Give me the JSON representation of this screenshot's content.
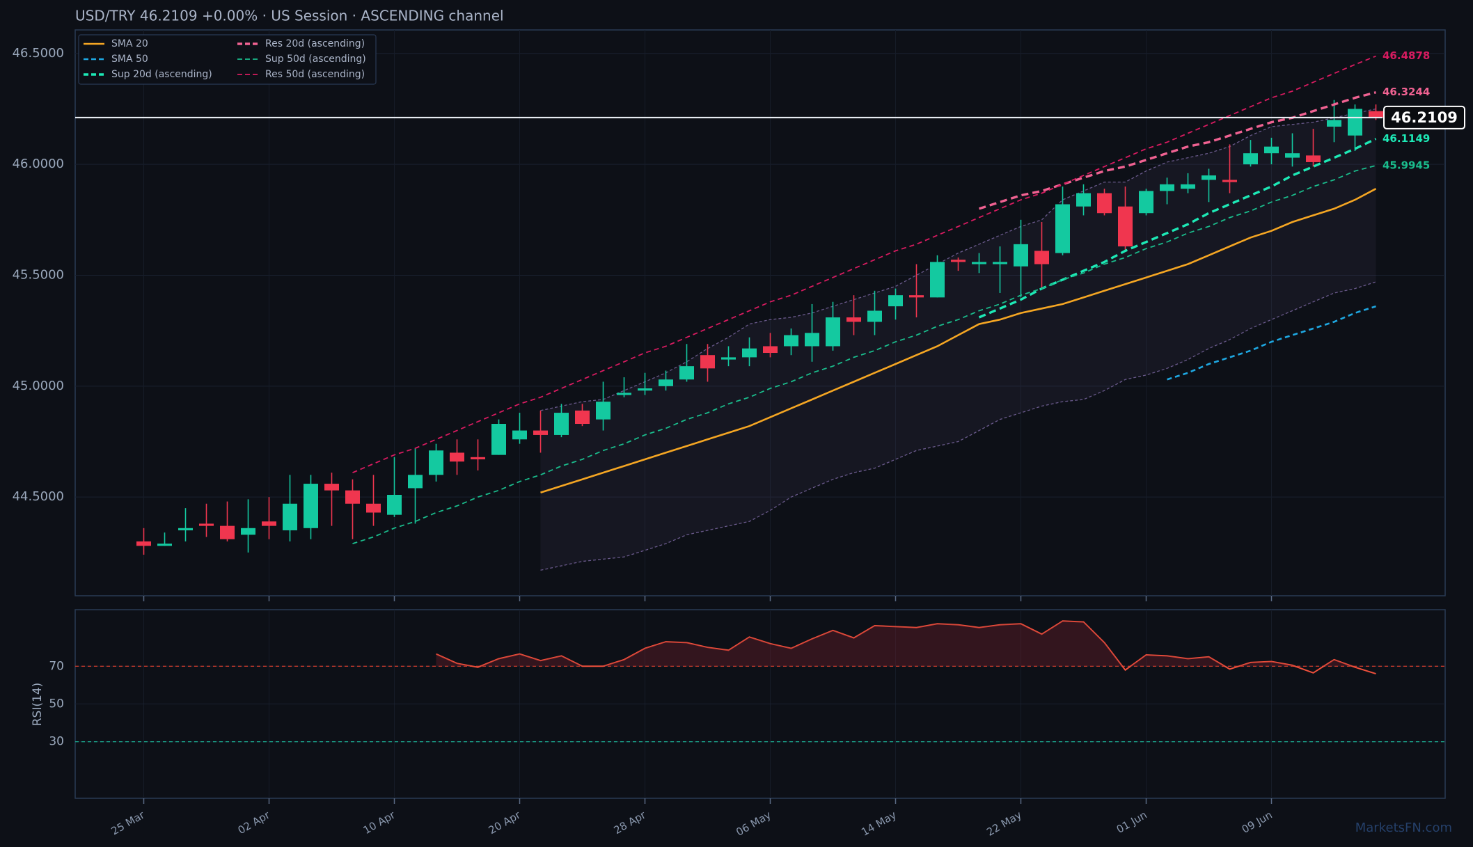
{
  "chart_data": [
    {
      "type": "candlestick",
      "title": "USD/TRY   46.2109   +0.00%  ·  US Session  ·  ASCENDING channel",
      "watermark": "MarketsFN.com",
      "categories": [
        "25 Mar",
        null,
        null,
        null,
        null,
        null,
        "02 Apr",
        null,
        null,
        null,
        null,
        null,
        "10 Apr",
        null,
        null,
        null,
        null,
        null,
        "20 Apr",
        null,
        null,
        null,
        null,
        null,
        "28 Apr",
        null,
        null,
        null,
        null,
        null,
        "06 May",
        null,
        null,
        null,
        null,
        null,
        "14 May",
        null,
        null,
        null,
        null,
        null,
        "22 May",
        null,
        null,
        null,
        null,
        null,
        "01 Jun",
        null,
        null,
        null,
        null,
        null,
        "09 Jun",
        null,
        null,
        null,
        null,
        null
      ],
      "open": [
        44.3,
        44.28,
        44.35,
        44.38,
        44.37,
        44.33,
        44.39,
        44.35,
        44.36,
        44.56,
        44.53,
        44.47,
        44.42,
        44.54,
        44.6,
        44.7,
        44.68,
        44.69,
        44.76,
        44.8,
        44.78,
        44.89,
        44.85,
        44.96,
        44.98,
        45.0,
        45.03,
        45.14,
        45.12,
        45.13,
        45.18,
        45.18,
        45.18,
        45.18,
        45.31,
        45.29,
        45.36,
        45.41,
        45.4,
        45.57,
        45.55,
        45.55,
        45.54,
        45.61,
        45.6,
        45.81,
        45.87,
        45.81,
        45.78,
        45.88,
        45.89,
        45.93,
        45.93,
        46.0,
        46.05,
        46.03,
        46.04,
        46.17,
        46.13,
        46.24
      ],
      "high": [
        44.36,
        44.34,
        44.45,
        44.47,
        44.48,
        44.49,
        44.5,
        44.6,
        44.6,
        44.61,
        44.58,
        44.6,
        44.68,
        44.72,
        44.74,
        44.76,
        44.76,
        44.85,
        44.88,
        44.89,
        44.92,
        44.92,
        45.02,
        45.04,
        45.06,
        45.07,
        45.19,
        45.19,
        45.18,
        45.22,
        45.24,
        45.26,
        45.37,
        45.38,
        45.41,
        45.43,
        45.44,
        45.55,
        45.59,
        45.58,
        45.6,
        45.63,
        45.75,
        45.74,
        45.9,
        45.91,
        45.89,
        45.9,
        45.89,
        45.94,
        45.96,
        45.98,
        46.09,
        46.11,
        46.12,
        46.14,
        46.16,
        46.29,
        46.27,
        46.27
      ],
      "low": [
        44.24,
        44.28,
        44.3,
        44.32,
        44.3,
        44.25,
        44.31,
        44.3,
        44.31,
        44.37,
        44.31,
        44.37,
        44.41,
        44.38,
        44.57,
        44.6,
        44.62,
        44.69,
        44.74,
        44.7,
        44.77,
        44.82,
        44.8,
        44.95,
        44.96,
        44.98,
        45.02,
        45.02,
        45.09,
        45.09,
        45.13,
        45.14,
        45.11,
        45.16,
        45.23,
        45.23,
        45.3,
        45.31,
        45.4,
        45.52,
        45.51,
        45.42,
        45.4,
        45.44,
        45.59,
        45.77,
        45.77,
        45.61,
        45.77,
        45.82,
        45.87,
        45.83,
        45.87,
        45.99,
        46.0,
        45.99,
        45.99,
        46.1,
        46.06,
        46.2
      ],
      "close": [
        44.28,
        44.29,
        44.36,
        44.37,
        44.31,
        44.36,
        44.37,
        44.47,
        44.56,
        44.53,
        44.47,
        44.43,
        44.51,
        44.6,
        44.71,
        44.66,
        44.67,
        44.83,
        44.8,
        44.78,
        44.88,
        44.83,
        44.93,
        44.97,
        44.99,
        45.03,
        45.09,
        45.08,
        45.13,
        45.17,
        45.15,
        45.23,
        45.24,
        45.31,
        45.29,
        45.34,
        45.41,
        45.4,
        45.56,
        45.56,
        45.56,
        45.56,
        45.64,
        45.55,
        45.82,
        45.87,
        45.78,
        45.63,
        45.88,
        45.91,
        45.91,
        45.95,
        45.92,
        46.05,
        46.08,
        46.05,
        46.01,
        46.2,
        46.25,
        46.2109
      ],
      "up_color": "#14c9a0",
      "down_color": "#f0364f",
      "series": [
        {
          "name": "SMA 20",
          "color": "#f5a623",
          "dash": false,
          "width": 2.6,
          "values": [
            null,
            null,
            null,
            null,
            null,
            null,
            null,
            null,
            null,
            null,
            null,
            null,
            null,
            null,
            null,
            null,
            null,
            null,
            null,
            44.52,
            44.55,
            44.58,
            44.61,
            44.64,
            44.67,
            44.7,
            44.73,
            44.76,
            44.79,
            44.82,
            44.86,
            44.9,
            44.94,
            44.98,
            45.02,
            45.06,
            45.1,
            45.14,
            45.18,
            45.23,
            45.28,
            45.3,
            45.33,
            45.35,
            45.37,
            45.4,
            45.43,
            45.46,
            45.49,
            45.52,
            45.55,
            45.59,
            45.63,
            45.67,
            45.7,
            45.74,
            45.77,
            45.8,
            45.84,
            45.89
          ]
        },
        {
          "name": "SMA 50",
          "color": "#1ea7e1",
          "dash": true,
          "width": 2.6,
          "values": [
            null,
            null,
            null,
            null,
            null,
            null,
            null,
            null,
            null,
            null,
            null,
            null,
            null,
            null,
            null,
            null,
            null,
            null,
            null,
            null,
            null,
            null,
            null,
            null,
            null,
            null,
            null,
            null,
            null,
            null,
            null,
            null,
            null,
            null,
            null,
            null,
            null,
            null,
            null,
            null,
            null,
            null,
            null,
            null,
            null,
            null,
            null,
            null,
            null,
            45.03,
            45.06,
            45.1,
            45.13,
            45.16,
            45.2,
            45.23,
            45.26,
            45.29,
            45.33,
            45.36
          ]
        },
        {
          "name": "Sup 20d (ascending)",
          "color": "#1de9b6",
          "dash": true,
          "width": 3.4,
          "end_label": true,
          "values": [
            null,
            null,
            null,
            null,
            null,
            null,
            null,
            null,
            null,
            null,
            null,
            null,
            null,
            null,
            null,
            null,
            null,
            null,
            null,
            null,
            null,
            null,
            null,
            null,
            null,
            null,
            null,
            null,
            null,
            null,
            null,
            null,
            null,
            null,
            null,
            null,
            null,
            null,
            null,
            null,
            45.31,
            45.35,
            45.39,
            45.44,
            45.48,
            45.52,
            45.56,
            45.61,
            45.65,
            45.69,
            45.73,
            45.78,
            45.82,
            45.86,
            45.9,
            45.95,
            45.99,
            46.03,
            46.07,
            46.1149
          ]
        },
        {
          "name": "Res 20d (ascending)",
          "color": "#f06292",
          "dash": true,
          "width": 3.4,
          "end_label": true,
          "values": [
            null,
            null,
            null,
            null,
            null,
            null,
            null,
            null,
            null,
            null,
            null,
            null,
            null,
            null,
            null,
            null,
            null,
            null,
            null,
            null,
            null,
            null,
            null,
            null,
            null,
            null,
            null,
            null,
            null,
            null,
            null,
            null,
            null,
            null,
            null,
            null,
            null,
            null,
            null,
            null,
            45.8,
            45.83,
            45.86,
            45.88,
            45.91,
            45.94,
            45.97,
            45.99,
            46.02,
            46.05,
            46.08,
            46.1,
            46.13,
            46.16,
            46.19,
            46.21,
            46.24,
            46.27,
            46.3,
            46.3244
          ]
        },
        {
          "name": "Sup 50d (ascending)",
          "color": "#1abc8c",
          "dash": true,
          "width": 1.8,
          "end_label": true,
          "values": [
            null,
            null,
            null,
            null,
            null,
            null,
            null,
            null,
            null,
            null,
            44.29,
            44.32,
            44.36,
            44.39,
            44.43,
            44.46,
            44.5,
            44.53,
            44.57,
            44.6,
            44.64,
            44.67,
            44.71,
            44.74,
            44.78,
            44.81,
            44.85,
            44.88,
            44.92,
            44.95,
            44.99,
            45.02,
            45.06,
            45.09,
            45.13,
            45.16,
            45.2,
            45.23,
            45.27,
            45.3,
            45.34,
            45.37,
            45.41,
            45.44,
            45.48,
            45.51,
            45.55,
            45.58,
            45.62,
            45.65,
            45.69,
            45.72,
            45.76,
            45.79,
            45.83,
            45.86,
            45.9,
            45.93,
            45.97,
            45.9945
          ]
        },
        {
          "name": "Res 50d (ascending)",
          "color": "#d81b60",
          "dash": true,
          "width": 1.8,
          "end_label": true,
          "values": [
            null,
            null,
            null,
            null,
            null,
            null,
            null,
            null,
            null,
            null,
            44.61,
            44.65,
            44.69,
            44.72,
            44.76,
            44.8,
            44.84,
            44.88,
            44.92,
            44.95,
            44.99,
            45.03,
            45.07,
            45.11,
            45.15,
            45.18,
            45.22,
            45.26,
            45.3,
            45.34,
            45.38,
            45.41,
            45.45,
            45.49,
            45.53,
            45.57,
            45.61,
            45.64,
            45.68,
            45.72,
            45.76,
            45.8,
            45.84,
            45.87,
            45.91,
            45.95,
            45.99,
            46.03,
            46.07,
            46.1,
            46.14,
            46.18,
            46.22,
            46.26,
            46.3,
            46.33,
            46.37,
            46.41,
            46.45,
            46.4878
          ]
        }
      ],
      "bands": {
        "color": "#6a5a8c",
        "upper": [
          null,
          null,
          null,
          null,
          null,
          null,
          null,
          null,
          null,
          null,
          null,
          null,
          null,
          null,
          null,
          null,
          null,
          null,
          null,
          44.89,
          44.91,
          44.93,
          44.94,
          44.98,
          45.02,
          45.06,
          45.11,
          45.17,
          45.22,
          45.28,
          45.3,
          45.31,
          45.33,
          45.36,
          45.39,
          45.42,
          45.45,
          45.5,
          45.55,
          45.6,
          45.64,
          45.68,
          45.72,
          45.75,
          45.84,
          45.88,
          45.92,
          45.92,
          45.97,
          46.01,
          46.03,
          46.05,
          46.08,
          46.13,
          46.17,
          46.18,
          46.19,
          46.21,
          46.23,
          46.25
        ],
        "lower": [
          null,
          null,
          null,
          null,
          null,
          null,
          null,
          null,
          null,
          null,
          null,
          null,
          null,
          null,
          null,
          null,
          null,
          null,
          null,
          44.17,
          44.19,
          44.21,
          44.22,
          44.23,
          44.26,
          44.29,
          44.33,
          44.35,
          44.37,
          44.39,
          44.44,
          44.5,
          44.54,
          44.58,
          44.61,
          44.63,
          44.67,
          44.71,
          44.73,
          44.75,
          44.8,
          44.85,
          44.88,
          44.91,
          44.93,
          44.94,
          44.98,
          45.03,
          45.05,
          45.08,
          45.12,
          45.17,
          45.21,
          45.26,
          45.3,
          45.34,
          45.38,
          45.42,
          45.44,
          45.47
        ]
      },
      "price_line": 46.2109,
      "ylim": [
        44.055,
        46.606
      ],
      "yticks": [
        {
          "value": 44.5,
          "label": "44.5000"
        },
        {
          "value": 45,
          "label": "45.0000"
        },
        {
          "value": 45.5,
          "label": "45.5000"
        },
        {
          "value": 46,
          "label": "46.0000"
        },
        {
          "value": 46.5,
          "label": "46.5000"
        }
      ],
      "grid": true,
      "legend": "top-left"
    },
    {
      "type": "line",
      "ylabel": "RSI(14)",
      "color": "#f0503c",
      "values": [
        null,
        null,
        null,
        null,
        null,
        null,
        null,
        null,
        null,
        null,
        null,
        null,
        null,
        null,
        76.5,
        71.5,
        69.5,
        74,
        76.5,
        73,
        75.5,
        70,
        70,
        73.5,
        79.5,
        83,
        82.5,
        80,
        78.5,
        85.5,
        82,
        79.5,
        84.5,
        89,
        85,
        91.5,
        91,
        90.5,
        92.5,
        92,
        90.5,
        92,
        92.5,
        87,
        94,
        93.5,
        82.5,
        68,
        76,
        75.5,
        74,
        75,
        68.5,
        72,
        72.5,
        70.5,
        66.5,
        73.5,
        69.5,
        66
      ],
      "ylim": [
        0,
        100
      ],
      "yticks": [
        30,
        50,
        70
      ],
      "reference_lines": [
        {
          "value": 70,
          "color": "#c0392b"
        },
        {
          "value": 30,
          "color": "#1a9c84"
        }
      ],
      "fill_above": 70,
      "grid": true
    }
  ]
}
